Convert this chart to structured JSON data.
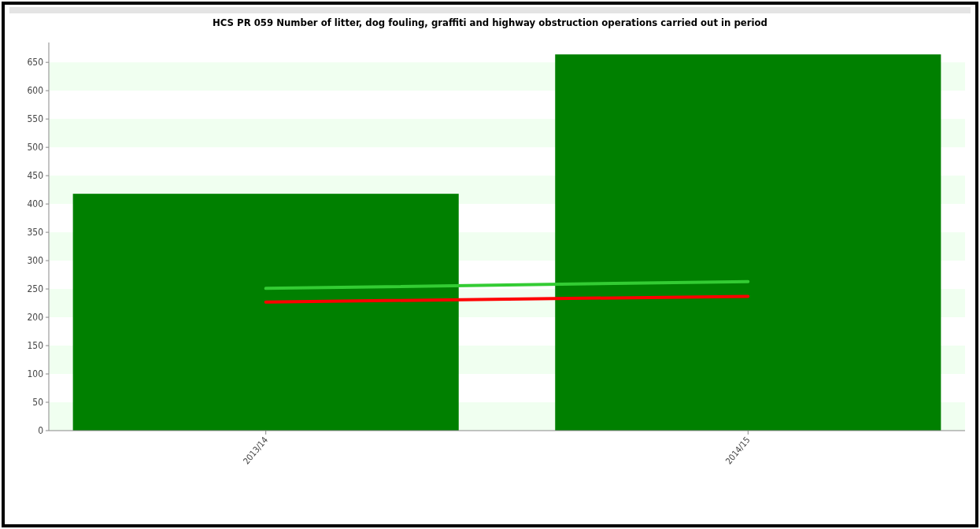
{
  "chart_data": {
    "type": "bar",
    "title": "HCS PR 059 Number of litter, dog fouling, graffiti and highway obstruction operations carried out in period",
    "categories": [
      "2013/14",
      "2014/15"
    ],
    "series": [
      {
        "color": "#008000",
        "values": [
          418,
          664
        ]
      },
      {
        "type": "line",
        "color": "#33cc33",
        "values": [
          251,
          263
        ]
      },
      {
        "type": "line",
        "color": "#ff0000",
        "values": [
          227,
          237
        ]
      }
    ],
    "ylim": [
      0,
      685
    ],
    "yticks": [
      0,
      50,
      100,
      150,
      200,
      250,
      300,
      350,
      400,
      450,
      500,
      550,
      600,
      650
    ]
  }
}
